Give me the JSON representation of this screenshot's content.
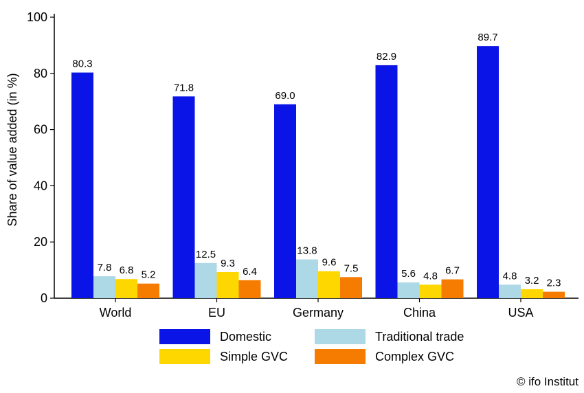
{
  "chart_data": {
    "type": "bar",
    "categories": [
      "World",
      "EU",
      "Germany",
      "China",
      "USA"
    ],
    "series": [
      {
        "name": "Domestic",
        "color": "#0a14e6",
        "values": [
          80.3,
          71.8,
          69.0,
          82.9,
          89.7
        ]
      },
      {
        "name": "Traditional trade",
        "color": "#add8e6",
        "values": [
          7.8,
          12.5,
          13.8,
          5.6,
          4.8
        ]
      },
      {
        "name": "Simple GVC",
        "color": "#ffd700",
        "values": [
          6.8,
          9.3,
          9.6,
          4.8,
          3.2
        ]
      },
      {
        "name": "Complex GVC",
        "color": "#f57c00",
        "values": [
          5.2,
          6.4,
          7.5,
          6.7,
          2.3
        ]
      }
    ],
    "title": "",
    "xlabel": "",
    "ylabel": "Share of value added (in %)",
    "ylim": [
      0,
      100
    ],
    "yticks": [
      0,
      20,
      40,
      60,
      80,
      100
    ],
    "grid": false,
    "legend_position": "bottom"
  },
  "credit": "© ifo Institut"
}
